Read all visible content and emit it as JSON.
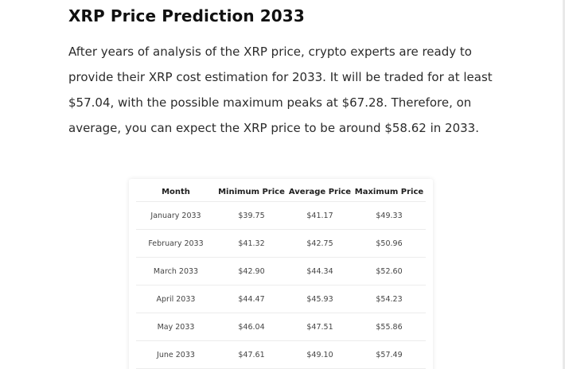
{
  "article": {
    "heading": "XRP Price Prediction 2033",
    "paragraph": "After years of analysis of the XRP price, crypto experts are ready to provide their XRP cost estimation for 2033. It will be traded for at least $57.04, with the possible maximum peaks at $67.28. Therefore, on average, you can expect the XRP price to be around $58.62 in 2033."
  },
  "table": {
    "headers": [
      "Month",
      "Minimum Price",
      "Average Price",
      "Maximum Price"
    ],
    "rows": [
      [
        "January 2033",
        "$39.75",
        "$41.17",
        "$49.33"
      ],
      [
        "February 2033",
        "$41.32",
        "$42.75",
        "$50.96"
      ],
      [
        "March 2033",
        "$42.90",
        "$44.34",
        "$52.60"
      ],
      [
        "April 2033",
        "$44.47",
        "$45.93",
        "$54.23"
      ],
      [
        "May 2033",
        "$46.04",
        "$47.51",
        "$55.86"
      ],
      [
        "June 2033",
        "$47.61",
        "$49.10",
        "$57.49"
      ]
    ]
  }
}
